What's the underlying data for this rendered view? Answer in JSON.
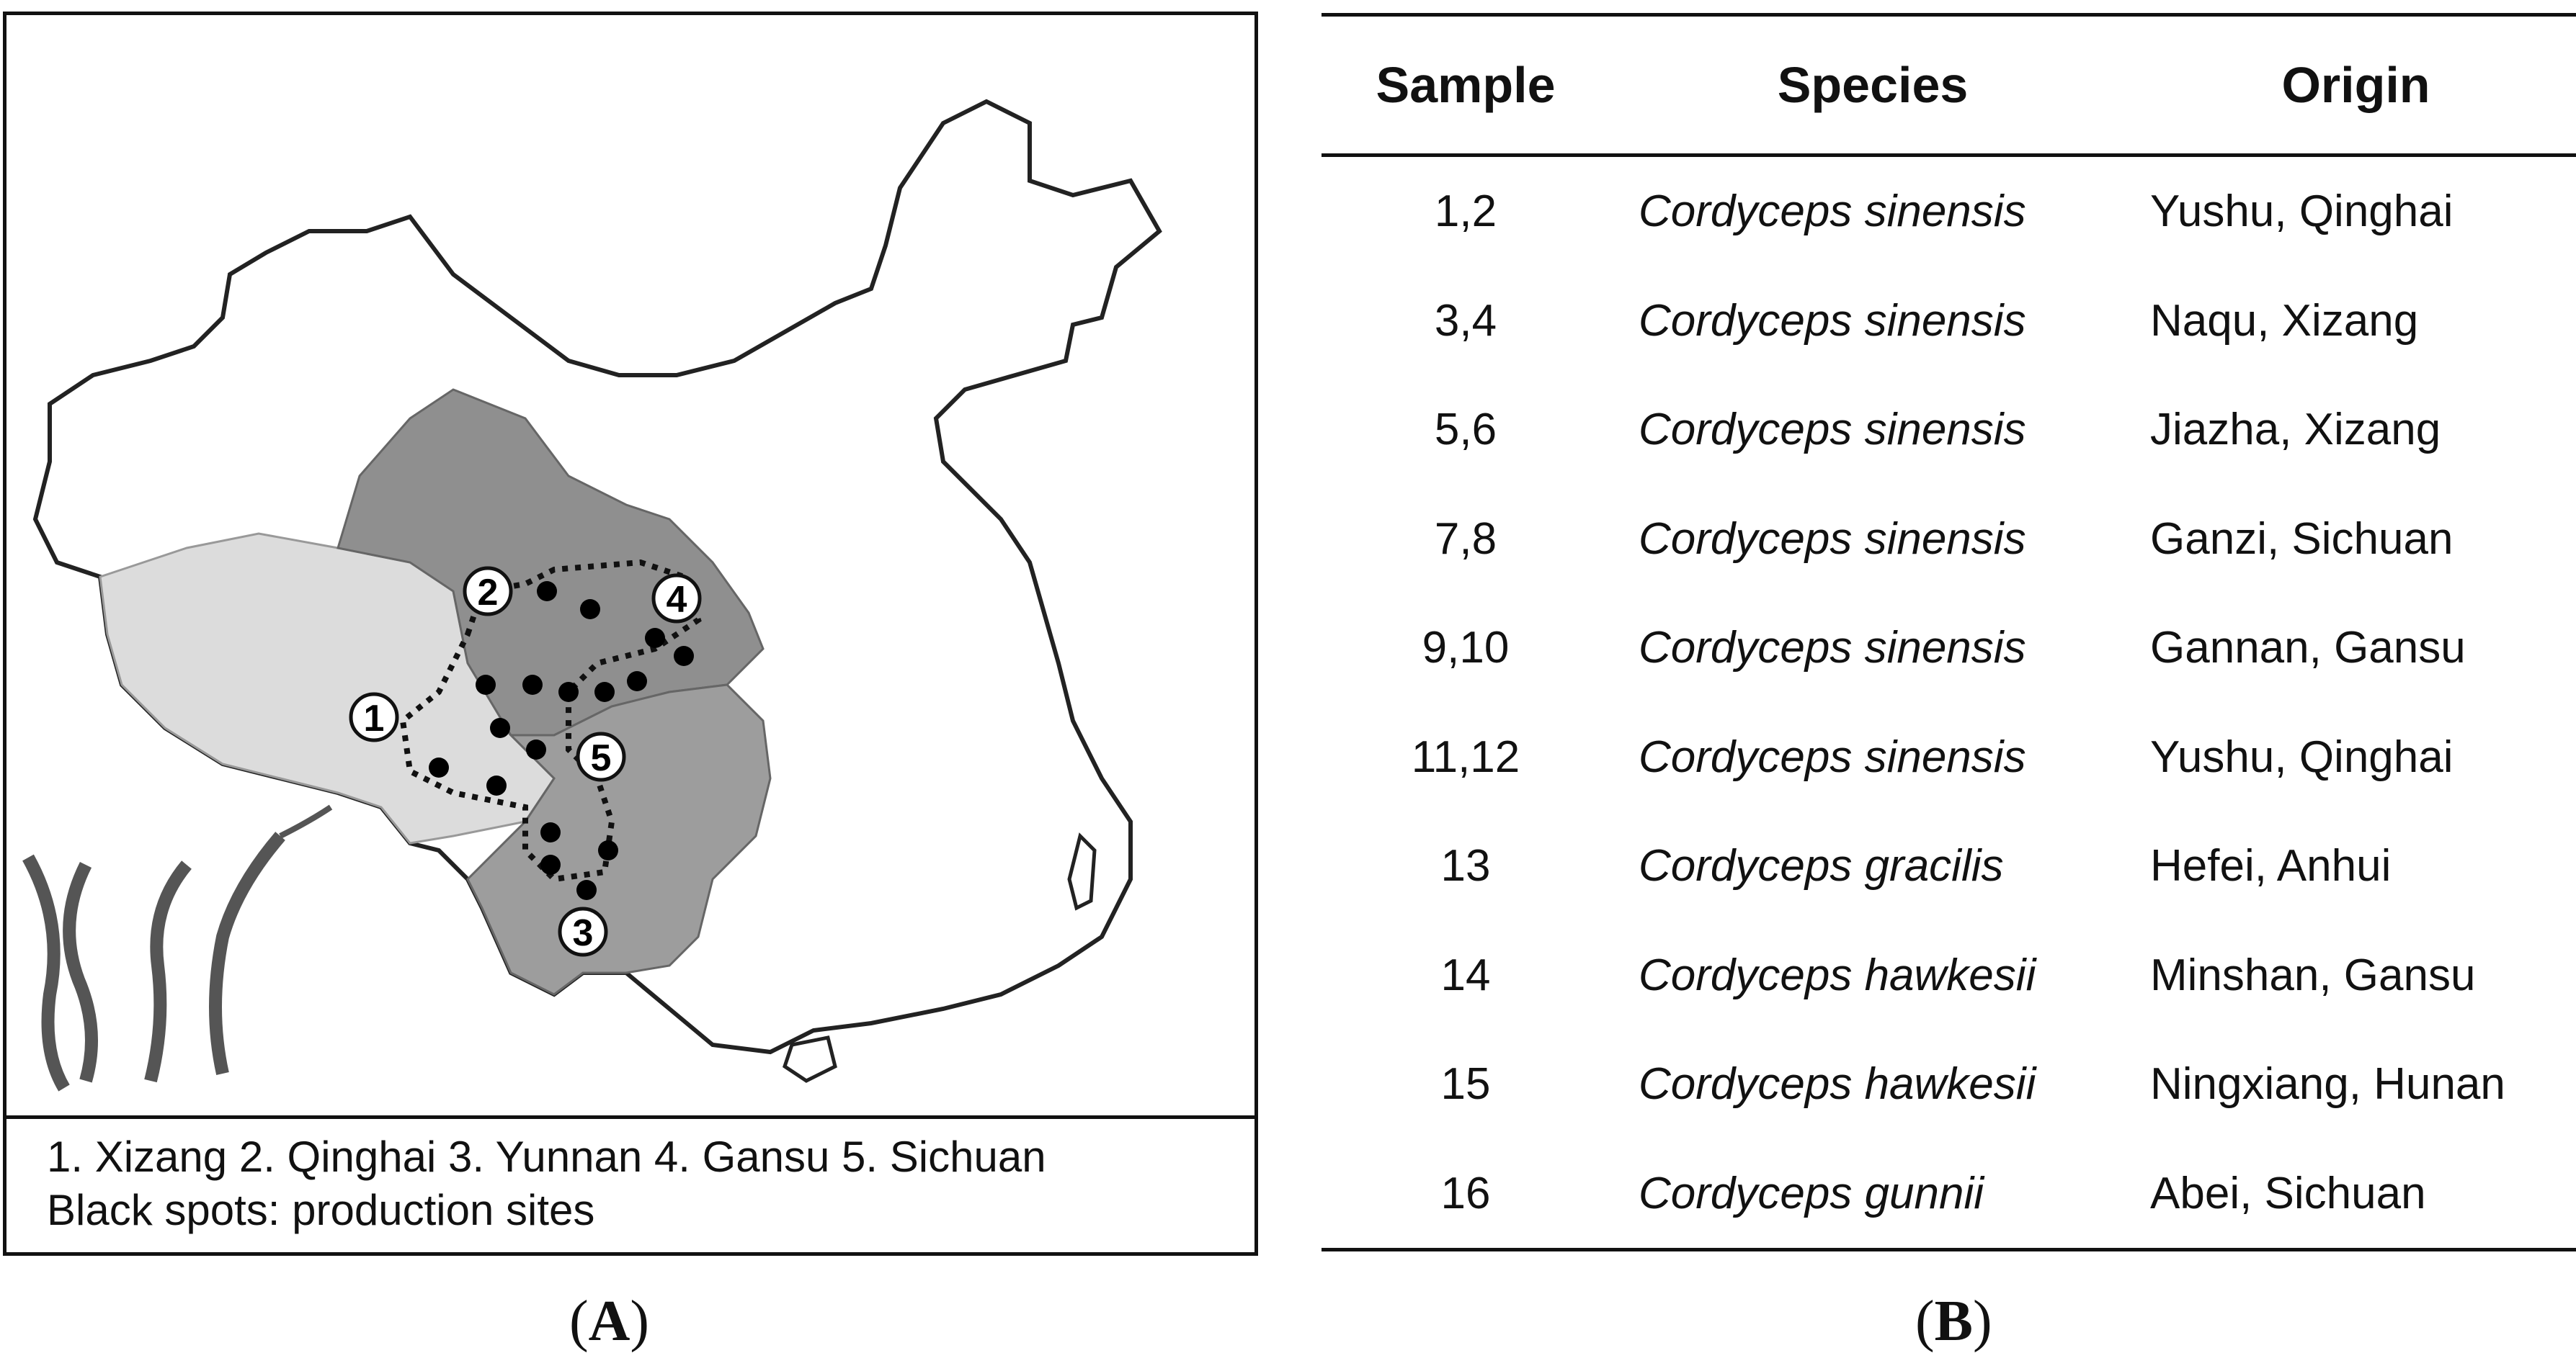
{
  "panel_a": {
    "caption_open": "(",
    "caption_letter": "A",
    "caption_close": ")",
    "region_markers": [
      "1",
      "2",
      "3",
      "4",
      "5"
    ],
    "legend_line1": "1. Xizang 2. Qinghai 3. Yunnan 4. Gansu 5. Sichuan",
    "legend_line2": "Black spots: production sites",
    "colors": {
      "xizang": "#dcdcdc",
      "qinghai_gansu": "#8f8f8f",
      "sichuan_yunnan": "#9d9d9d",
      "outline": "#222222",
      "production_site": "#000000"
    }
  },
  "panel_b": {
    "caption_open": "(",
    "caption_letter": "B",
    "caption_close": ")",
    "headers": [
      "Sample",
      "Species",
      "Origin"
    ],
    "rows": [
      {
        "sample": "1,2",
        "species": "Cordyceps sinensis",
        "origin": "Yushu, Qinghai"
      },
      {
        "sample": "3,4",
        "species": "Cordyceps sinensis",
        "origin": "Naqu, Xizang"
      },
      {
        "sample": "5,6",
        "species": "Cordyceps sinensis",
        "origin": "Jiazha, Xizang"
      },
      {
        "sample": "7,8",
        "species": "Cordyceps sinensis",
        "origin": "Ganzi, Sichuan"
      },
      {
        "sample": "9,10",
        "species": "Cordyceps sinensis",
        "origin": "Gannan, Gansu"
      },
      {
        "sample": "11,12",
        "species": "Cordyceps sinensis",
        "origin": "Yushu, Qinghai"
      },
      {
        "sample": "13",
        "species": "Cordyceps gracilis",
        "origin": "Hefei, Anhui"
      },
      {
        "sample": "14",
        "species": "Cordyceps hawkesii",
        "origin": "Minshan, Gansu"
      },
      {
        "sample": "15",
        "species": "Cordyceps hawkesii",
        "origin": "Ningxiang, Hunan"
      },
      {
        "sample": "16",
        "species": "Cordyceps gunnii",
        "origin": "Abei, Sichuan"
      }
    ]
  }
}
